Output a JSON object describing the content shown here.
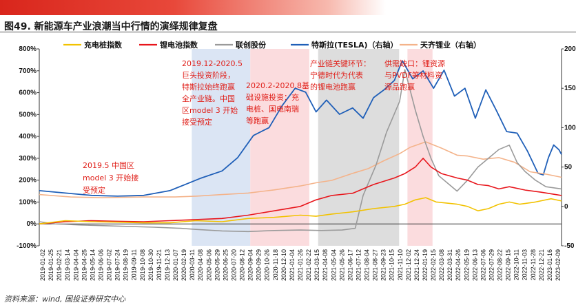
{
  "header": {
    "figure_title": "图49. 新能源车产业浪潮当中行情的演绎规律复盘"
  },
  "footer": {
    "source": "资料来源：wind, 国投证券研究中心"
  },
  "colors": {
    "charger": "#f2c200",
    "lithium": "#e8151b",
    "lianchuang": "#9a9a9a",
    "tesla": "#1f5fb8",
    "tianqi": "#f4b38a"
  },
  "chart_data": {
    "type": "line",
    "title": "",
    "y_left": {
      "ticks": [
        "-100%",
        "0%",
        "100%",
        "200%",
        "300%",
        "400%",
        "500%",
        "600%",
        "700%",
        "800%"
      ],
      "range": [
        -100,
        800
      ]
    },
    "y_right": {
      "ticks": [
        "-50",
        "0",
        "50",
        "100",
        "150",
        "200"
      ],
      "range": [
        -50,
        200
      ]
    },
    "legend": [
      {
        "key": "charger",
        "label": "充电桩指数"
      },
      {
        "key": "lithium",
        "label": "锂电池指数"
      },
      {
        "key": "lianchuang",
        "label": "联创股份"
      },
      {
        "key": "tesla",
        "label": "特斯拉(TESLA)（右轴）"
      },
      {
        "key": "tianqi",
        "label": "天齐锂业（右轴）"
      }
    ],
    "x_labels": [
      "2019-01-02",
      "2019-01-25",
      "2019-02-21",
      "2019-03-14",
      "2019-04-04",
      "2019-04-25",
      "2019-05-14",
      "2019-06-06",
      "2019-07-02",
      "2019-07-24",
      "2019-08-19",
      "2019-09-11",
      "2019-10-08",
      "2019-10-30",
      "2019-11-21",
      "2019-12-13",
      "2020-01-07",
      "2020-02-19",
      "2020-03-11",
      "2020-04-08",
      "2020-05-06",
      "2020-05-29",
      "2020-06-25",
      "2020-07-20",
      "2020-08-12",
      "2020-09-04",
      "2020-09-29",
      "2020-10-26",
      "2020-11-18",
      "2020-12-10",
      "2021-01-04",
      "2021-01-26",
      "2021-02-22",
      "2021-03-15",
      "2021-04-08",
      "2021-05-04",
      "2021-05-26",
      "2021-06-17",
      "2021-07-12",
      "2021-08-04",
      "2021-08-27",
      "2021-09-23",
      "2021-10-15",
      "2021-11-10",
      "2021-12-02",
      "2021-12-24",
      "2022-01-19",
      "2022-02-15",
      "2022-03-08",
      "2022-03-31",
      "2022-04-26",
      "2022-05-19",
      "2022-06-13",
      "2022-07-06",
      "2022-07-29",
      "2022-08-22",
      "2022-09-15",
      "2022-10-11",
      "2022-11-03",
      "2022-11-28",
      "2022-12-21",
      "2023-01-16",
      "2023-02-09"
    ],
    "shaded_periods": [
      {
        "start": 0.292,
        "end": 0.404,
        "color": "#dbe5f4"
      },
      {
        "start": 0.404,
        "end": 0.517,
        "color": "#fbdcde"
      },
      {
        "start": 0.534,
        "end": 0.689,
        "color": "#dddddd"
      },
      {
        "start": 0.705,
        "end": 0.753,
        "color": "#fbdcde"
      }
    ],
    "series": [
      {
        "key": "tesla",
        "axis": "right",
        "points": [
          [
            0,
            20
          ],
          [
            0.05,
            17
          ],
          [
            0.1,
            14
          ],
          [
            0.15,
            13
          ],
          [
            0.2,
            14
          ],
          [
            0.25,
            20
          ],
          [
            0.28,
            28
          ],
          [
            0.31,
            36
          ],
          [
            0.35,
            45
          ],
          [
            0.38,
            62
          ],
          [
            0.41,
            90
          ],
          [
            0.44,
            100
          ],
          [
            0.465,
            128
          ],
          [
            0.49,
            150
          ],
          [
            0.51,
            145
          ],
          [
            0.53,
            120
          ],
          [
            0.55,
            135
          ],
          [
            0.575,
            117
          ],
          [
            0.6,
            125
          ],
          [
            0.62,
            112
          ],
          [
            0.64,
            138
          ],
          [
            0.66,
            148
          ],
          [
            0.68,
            160
          ],
          [
            0.695,
            185
          ],
          [
            0.715,
            162
          ],
          [
            0.735,
            172
          ],
          [
            0.755,
            150
          ],
          [
            0.775,
            173
          ],
          [
            0.795,
            140
          ],
          [
            0.815,
            150
          ],
          [
            0.835,
            112
          ],
          [
            0.855,
            148
          ],
          [
            0.875,
            122
          ],
          [
            0.895,
            95
          ],
          [
            0.915,
            93
          ],
          [
            0.935,
            70
          ],
          [
            0.945,
            56
          ],
          [
            0.955,
            42
          ],
          [
            0.965,
            40
          ],
          [
            0.975,
            62
          ],
          [
            0.985,
            78
          ],
          [
            0.995,
            72
          ],
          [
            1,
            66
          ]
        ]
      },
      {
        "key": "tianqi",
        "axis": "right",
        "points": [
          [
            0,
            15
          ],
          [
            0.06,
            12
          ],
          [
            0.12,
            11
          ],
          [
            0.2,
            12
          ],
          [
            0.26,
            12
          ],
          [
            0.3,
            13
          ],
          [
            0.35,
            15
          ],
          [
            0.4,
            17
          ],
          [
            0.45,
            21
          ],
          [
            0.5,
            26
          ],
          [
            0.53,
            30
          ],
          [
            0.56,
            33
          ],
          [
            0.6,
            42
          ],
          [
            0.63,
            48
          ],
          [
            0.66,
            58
          ],
          [
            0.69,
            67
          ],
          [
            0.71,
            75
          ],
          [
            0.74,
            82
          ],
          [
            0.77,
            74
          ],
          [
            0.8,
            65
          ],
          [
            0.82,
            64
          ],
          [
            0.85,
            60
          ],
          [
            0.88,
            62
          ],
          [
            0.91,
            56
          ],
          [
            0.94,
            44
          ],
          [
            0.97,
            41
          ],
          [
            1,
            37
          ]
        ]
      },
      {
        "key": "lianchuang",
        "axis": "left",
        "points": [
          [
            0,
            10
          ],
          [
            0.03,
            0
          ],
          [
            0.08,
            -5
          ],
          [
            0.15,
            -10
          ],
          [
            0.22,
            -15
          ],
          [
            0.27,
            -20
          ],
          [
            0.3,
            -25
          ],
          [
            0.35,
            -32
          ],
          [
            0.4,
            -35
          ],
          [
            0.45,
            -30
          ],
          [
            0.5,
            -28
          ],
          [
            0.54,
            -30
          ],
          [
            0.58,
            -28
          ],
          [
            0.605,
            -20
          ],
          [
            0.62,
            130
          ],
          [
            0.645,
            270
          ],
          [
            0.665,
            420
          ],
          [
            0.69,
            560
          ],
          [
            0.7,
            705
          ],
          [
            0.72,
            520
          ],
          [
            0.735,
            400
          ],
          [
            0.75,
            300
          ],
          [
            0.765,
            220
          ],
          [
            0.785,
            180
          ],
          [
            0.8,
            150
          ],
          [
            0.82,
            200
          ],
          [
            0.84,
            260
          ],
          [
            0.86,
            300
          ],
          [
            0.88,
            340
          ],
          [
            0.9,
            360
          ],
          [
            0.915,
            280
          ],
          [
            0.93,
            240
          ],
          [
            0.95,
            200
          ],
          [
            0.97,
            170
          ],
          [
            1,
            160
          ]
        ]
      },
      {
        "key": "lithium",
        "axis": "left",
        "points": [
          [
            0,
            0
          ],
          [
            0.05,
            10
          ],
          [
            0.1,
            15
          ],
          [
            0.15,
            12
          ],
          [
            0.2,
            10
          ],
          [
            0.25,
            15
          ],
          [
            0.3,
            20
          ],
          [
            0.35,
            25
          ],
          [
            0.4,
            40
          ],
          [
            0.45,
            60
          ],
          [
            0.5,
            80
          ],
          [
            0.53,
            110
          ],
          [
            0.56,
            130
          ],
          [
            0.6,
            140
          ],
          [
            0.64,
            180
          ],
          [
            0.68,
            210
          ],
          [
            0.7,
            230
          ],
          [
            0.72,
            260
          ],
          [
            0.735,
            300
          ],
          [
            0.75,
            260
          ],
          [
            0.77,
            230
          ],
          [
            0.8,
            210
          ],
          [
            0.82,
            200
          ],
          [
            0.84,
            180
          ],
          [
            0.86,
            175
          ],
          [
            0.88,
            160
          ],
          [
            0.9,
            170
          ],
          [
            0.93,
            155
          ],
          [
            0.96,
            145
          ],
          [
            1,
            130
          ]
        ]
      },
      {
        "key": "charger",
        "axis": "left",
        "points": [
          [
            0,
            0
          ],
          [
            0.05,
            15
          ],
          [
            0.1,
            10
          ],
          [
            0.15,
            8
          ],
          [
            0.2,
            5
          ],
          [
            0.25,
            5
          ],
          [
            0.3,
            15
          ],
          [
            0.35,
            10
          ],
          [
            0.4,
            25
          ],
          [
            0.45,
            30
          ],
          [
            0.5,
            40
          ],
          [
            0.53,
            35
          ],
          [
            0.56,
            45
          ],
          [
            0.6,
            55
          ],
          [
            0.64,
            70
          ],
          [
            0.68,
            80
          ],
          [
            0.7,
            90
          ],
          [
            0.72,
            110
          ],
          [
            0.74,
            120
          ],
          [
            0.76,
            100
          ],
          [
            0.8,
            90
          ],
          [
            0.82,
            80
          ],
          [
            0.84,
            60
          ],
          [
            0.86,
            70
          ],
          [
            0.88,
            90
          ],
          [
            0.9,
            100
          ],
          [
            0.92,
            90
          ],
          [
            0.95,
            100
          ],
          [
            0.98,
            115
          ],
          [
            1,
            105
          ]
        ]
      }
    ],
    "annotations": [
      {
        "lines": [
          "2019.12-2020.5",
          "巨头投资阶段，",
          "特斯拉始终跑赢",
          "全产业链。中国",
          "区model 3 开始",
          "接受预定"
        ]
      },
      {
        "lines": [
          "2020.2-2020.8基",
          "础设施投资：充",
          "电桩、国电南瑞",
          "等跑赢"
        ]
      },
      {
        "lines": [
          "产业链关键环节：",
          "宁德时代为代表",
          "的锂电池跑赢"
        ]
      },
      {
        "lines": [
          "供需缺口：锂资源",
          "与PVDF等材料资",
          "源品跑赢"
        ]
      },
      {
        "lines": [
          "2019.5 中国区",
          "model 3 开始接",
          "受预定"
        ]
      }
    ]
  }
}
